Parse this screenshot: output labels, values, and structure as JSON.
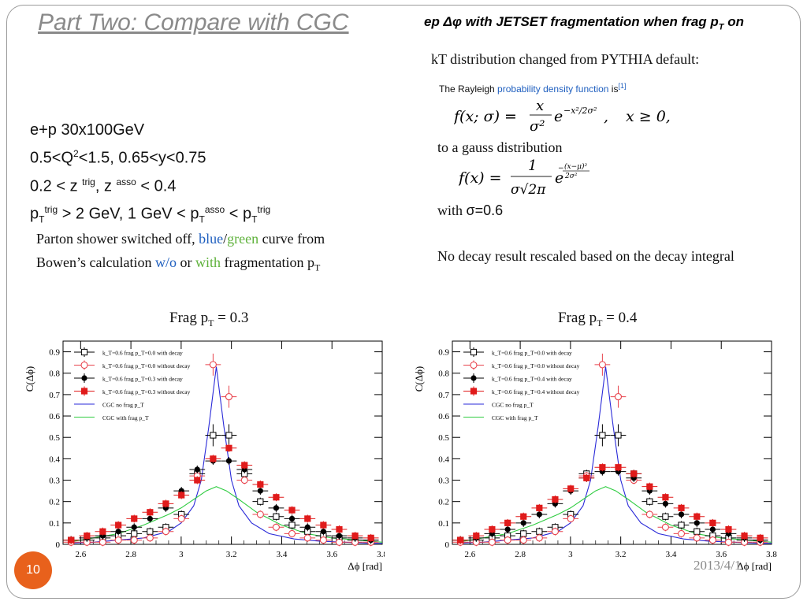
{
  "slide": {
    "title": "Part Two: Compare with CGC",
    "subtitle_pre": "ep Δφ with JETSET fragmentation when frag p",
    "subtitle_sub": "T",
    "subtitle_post": " on",
    "kt_text": "kT distribution changed from PYTHIA default:",
    "rayleigh_pre": "The Rayleigh ",
    "rayleigh_link": "probability density function",
    "rayleigh_post": " is",
    "rayleigh_ref": "[1]",
    "to_gauss": "to a gauss distribution",
    "with_sigma_pre": "with ",
    "with_sigma_val": "σ=0.6",
    "no_decay": "No decay result rescaled based on the decay integral",
    "params": {
      "line1": "e+p 30x100GeV",
      "line2a": "0.5<Q",
      "line2sup": "2",
      "line2b": "<1.5,  0.65<y<0.75",
      "line3a": "0.2 < z ",
      "line3sup1": "trig",
      "line3b": ", z ",
      "line3sup2": "asso",
      "line3c": " < 0.4",
      "line4": {
        "p": "p",
        "T": "T",
        "trig": "trig",
        "mid": " > 2 GeV, 1 GeV < p",
        "asso": "asso",
        "lt": " < p"
      }
    },
    "parton": {
      "a": "Parton shower switched off, ",
      "blue": "blue",
      "slash": "/",
      "green": "green",
      "b": " curve from Bowen’s calculation ",
      "wo": "w/o",
      "c": "  or ",
      "with": "with",
      "d": " fragmentation p",
      "sub": "T"
    },
    "date": "2013/4/1",
    "page_number": "10"
  },
  "chart_data": [
    {
      "type": "scatter",
      "heading_pre": "Frag p",
      "heading_sub": "T",
      "heading_post": " = 0.3",
      "xlabel": "Δϕ [rad]",
      "ylabel": "C(Δϕ)",
      "xlim": [
        2.53,
        3.8
      ],
      "ylim": [
        0,
        0.95
      ],
      "xticks": [
        2.6,
        2.8,
        3,
        3.2,
        3.4,
        3.6,
        3.8
      ],
      "yticks": [
        0,
        0.1,
        0.2,
        0.3,
        0.4,
        0.5,
        0.6,
        0.7,
        0.8,
        0.9
      ],
      "legend_position": "top-left",
      "series": [
        {
          "name": "k_T=0.6 frag p_T=0.0 with decay",
          "marker": "open-square",
          "color": "#000000",
          "x": [
            2.562,
            2.625,
            2.688,
            2.75,
            2.813,
            2.876,
            2.939,
            3.001,
            3.064,
            3.127,
            3.19,
            3.252,
            3.315,
            3.378,
            3.441,
            3.503,
            3.566,
            3.629,
            3.692,
            3.755
          ],
          "y": [
            0.02,
            0.02,
            0.03,
            0.04,
            0.05,
            0.06,
            0.08,
            0.14,
            0.33,
            0.51,
            0.51,
            0.33,
            0.2,
            0.13,
            0.09,
            0.06,
            0.04,
            0.03,
            0.02,
            0.02
          ]
        },
        {
          "name": "k_T=0.6 frag p_T=0.0 without decay",
          "marker": "open-circle",
          "color": "#e8434d",
          "x": [
            2.562,
            2.625,
            2.688,
            2.75,
            2.813,
            2.876,
            2.939,
            3.001,
            3.064,
            3.127,
            3.19,
            3.252,
            3.315,
            3.378,
            3.441,
            3.503,
            3.566,
            3.629,
            3.692,
            3.755
          ],
          "y": [
            0.01,
            0.01,
            0.01,
            0.02,
            0.02,
            0.03,
            0.06,
            0.12,
            0.32,
            0.84,
            0.69,
            0.3,
            0.14,
            0.08,
            0.05,
            0.03,
            0.02,
            0.01,
            0.01,
            0.01
          ]
        },
        {
          "name": "k_T=0.6 frag p_T=0.3 with decay",
          "marker": "filled-circle",
          "color": "#000000",
          "x": [
            2.562,
            2.625,
            2.688,
            2.75,
            2.813,
            2.876,
            2.939,
            3.001,
            3.064,
            3.127,
            3.19,
            3.252,
            3.315,
            3.378,
            3.441,
            3.503,
            3.566,
            3.629,
            3.692,
            3.755
          ],
          "y": [
            0.02,
            0.03,
            0.04,
            0.06,
            0.08,
            0.12,
            0.17,
            0.25,
            0.35,
            0.39,
            0.39,
            0.35,
            0.25,
            0.17,
            0.12,
            0.08,
            0.06,
            0.04,
            0.03,
            0.02
          ]
        },
        {
          "name": "k_T=0.6 frag p_T=0.3 without decay",
          "marker": "filled-square",
          "color": "#e01b1b",
          "x": [
            2.562,
            2.625,
            2.688,
            2.75,
            2.813,
            2.876,
            2.939,
            3.001,
            3.064,
            3.127,
            3.19,
            3.252,
            3.315,
            3.378,
            3.441,
            3.503,
            3.566,
            3.629,
            3.692,
            3.755
          ],
          "y": [
            0.02,
            0.04,
            0.06,
            0.09,
            0.12,
            0.15,
            0.19,
            0.23,
            0.3,
            0.4,
            0.45,
            0.37,
            0.28,
            0.22,
            0.16,
            0.12,
            0.09,
            0.07,
            0.04,
            0.03
          ]
        },
        {
          "name": "CGC no frag p_T",
          "line": true,
          "color": "#2a2ad8",
          "x": [
            2.55,
            2.65,
            2.75,
            2.85,
            2.95,
            3.0,
            3.05,
            3.08,
            3.11,
            3.14,
            3.17,
            3.2,
            3.23,
            3.28,
            3.35,
            3.45,
            3.55,
            3.65,
            3.75,
            3.8
          ],
          "y": [
            0.005,
            0.01,
            0.02,
            0.03,
            0.06,
            0.1,
            0.18,
            0.3,
            0.55,
            0.83,
            0.55,
            0.3,
            0.18,
            0.1,
            0.05,
            0.025,
            0.015,
            0.01,
            0.005,
            0.005
          ]
        },
        {
          "name": "CGC with frag p_T",
          "line": true,
          "color": "#2ecc40",
          "x": [
            2.55,
            2.65,
            2.75,
            2.85,
            2.95,
            3.0,
            3.05,
            3.1,
            3.14,
            3.18,
            3.23,
            3.3,
            3.4,
            3.5,
            3.6,
            3.7,
            3.8
          ],
          "y": [
            0.01,
            0.03,
            0.05,
            0.09,
            0.14,
            0.17,
            0.21,
            0.25,
            0.27,
            0.25,
            0.21,
            0.15,
            0.09,
            0.05,
            0.03,
            0.02,
            0.01
          ]
        }
      ]
    },
    {
      "type": "scatter",
      "heading_pre": "Frag p",
      "heading_sub": "T",
      "heading_post": " = 0.4",
      "xlabel": "Δϕ [rad]",
      "ylabel": "C(Δϕ)",
      "xlim": [
        2.53,
        3.8
      ],
      "ylim": [
        0,
        0.95
      ],
      "xticks": [
        2.6,
        2.8,
        3,
        3.2,
        3.4,
        3.6,
        3.8
      ],
      "yticks": [
        0,
        0.1,
        0.2,
        0.3,
        0.4,
        0.5,
        0.6,
        0.7,
        0.8,
        0.9
      ],
      "legend_position": "top-left",
      "series": [
        {
          "name": "k_T=0.6 frag p_T=0.0 with decay",
          "marker": "open-square",
          "color": "#000000",
          "x": [
            2.562,
            2.625,
            2.688,
            2.75,
            2.813,
            2.876,
            2.939,
            3.001,
            3.064,
            3.127,
            3.19,
            3.252,
            3.315,
            3.378,
            3.441,
            3.503,
            3.566,
            3.629,
            3.692,
            3.755
          ],
          "y": [
            0.02,
            0.02,
            0.03,
            0.04,
            0.05,
            0.06,
            0.08,
            0.14,
            0.33,
            0.51,
            0.51,
            0.33,
            0.2,
            0.13,
            0.09,
            0.06,
            0.04,
            0.03,
            0.02,
            0.02
          ]
        },
        {
          "name": "k_T=0.6 frag p_T=0.0 without decay",
          "marker": "open-circle",
          "color": "#e8434d",
          "x": [
            2.562,
            2.625,
            2.688,
            2.75,
            2.813,
            2.876,
            2.939,
            3.001,
            3.064,
            3.127,
            3.19,
            3.252,
            3.315,
            3.378,
            3.441,
            3.503,
            3.566,
            3.629,
            3.692,
            3.755
          ],
          "y": [
            0.01,
            0.01,
            0.01,
            0.02,
            0.02,
            0.03,
            0.06,
            0.12,
            0.32,
            0.84,
            0.69,
            0.3,
            0.14,
            0.08,
            0.05,
            0.03,
            0.02,
            0.01,
            0.01,
            0.01
          ]
        },
        {
          "name": "k_T=0.6 frag p_T=0.4 with decay",
          "marker": "filled-circle",
          "color": "#000000",
          "x": [
            2.562,
            2.625,
            2.688,
            2.75,
            2.813,
            2.876,
            2.939,
            3.001,
            3.064,
            3.127,
            3.19,
            3.252,
            3.315,
            3.378,
            3.441,
            3.503,
            3.566,
            3.629,
            3.692,
            3.755
          ],
          "y": [
            0.02,
            0.03,
            0.05,
            0.07,
            0.1,
            0.14,
            0.19,
            0.25,
            0.31,
            0.34,
            0.34,
            0.31,
            0.25,
            0.19,
            0.14,
            0.1,
            0.07,
            0.05,
            0.03,
            0.02
          ]
        },
        {
          "name": "k_T=0.6 frag p_T=0.4 without decay",
          "marker": "filled-square",
          "color": "#e01b1b",
          "x": [
            2.562,
            2.625,
            2.688,
            2.75,
            2.813,
            2.876,
            2.939,
            3.001,
            3.064,
            3.127,
            3.19,
            3.252,
            3.315,
            3.378,
            3.441,
            3.503,
            3.566,
            3.629,
            3.692,
            3.755
          ],
          "y": [
            0.02,
            0.04,
            0.07,
            0.1,
            0.13,
            0.17,
            0.21,
            0.26,
            0.31,
            0.36,
            0.36,
            0.33,
            0.27,
            0.22,
            0.17,
            0.13,
            0.1,
            0.07,
            0.04,
            0.03
          ]
        },
        {
          "name": "CGC no frag p_T",
          "line": true,
          "color": "#2a2ad8",
          "x": [
            2.55,
            2.65,
            2.75,
            2.85,
            2.95,
            3.0,
            3.05,
            3.08,
            3.11,
            3.14,
            3.17,
            3.2,
            3.23,
            3.28,
            3.35,
            3.45,
            3.55,
            3.65,
            3.75,
            3.8
          ],
          "y": [
            0.005,
            0.01,
            0.02,
            0.03,
            0.06,
            0.1,
            0.18,
            0.3,
            0.55,
            0.83,
            0.55,
            0.3,
            0.18,
            0.1,
            0.05,
            0.025,
            0.015,
            0.01,
            0.005,
            0.005
          ]
        },
        {
          "name": "CGC with frag p_T",
          "line": true,
          "color": "#2ecc40",
          "x": [
            2.55,
            2.65,
            2.75,
            2.85,
            2.95,
            3.0,
            3.05,
            3.1,
            3.14,
            3.18,
            3.23,
            3.3,
            3.4,
            3.5,
            3.6,
            3.7,
            3.8
          ],
          "y": [
            0.01,
            0.03,
            0.05,
            0.09,
            0.14,
            0.17,
            0.21,
            0.25,
            0.27,
            0.25,
            0.21,
            0.15,
            0.09,
            0.05,
            0.03,
            0.02,
            0.01
          ]
        }
      ]
    }
  ]
}
